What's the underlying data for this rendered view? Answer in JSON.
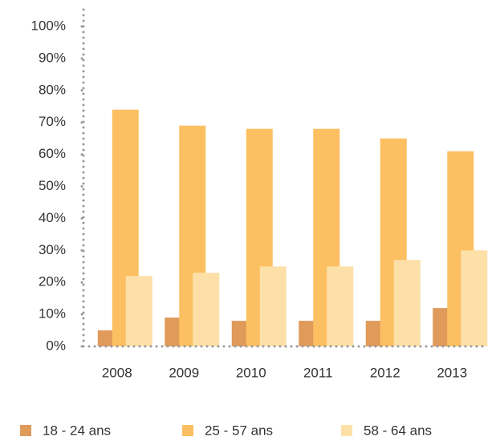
{
  "chart_data": {
    "type": "bar",
    "categories": [
      "2008",
      "2009",
      "2010",
      "2011",
      "2012",
      "2013"
    ],
    "series": [
      {
        "name": "18 - 24 ans",
        "color": "#e09a5a",
        "values": [
          5,
          9,
          8,
          8,
          8,
          12
        ]
      },
      {
        "name": "25 - 57 ans",
        "color": "#fcc062",
        "values": [
          74,
          69,
          68,
          68,
          65,
          61
        ]
      },
      {
        "name": "58 - 64 ans",
        "color": "#fde0a8",
        "values": [
          22,
          23,
          25,
          25,
          27,
          30
        ]
      }
    ],
    "ylim": [
      0,
      100
    ],
    "yticks": [
      {
        "value": 0,
        "label": "0%"
      },
      {
        "value": 10,
        "label": "10%"
      },
      {
        "value": 20,
        "label": "20%"
      },
      {
        "value": 30,
        "label": "30%"
      },
      {
        "value": 40,
        "label": "40%"
      },
      {
        "value": 50,
        "label": "50%"
      },
      {
        "value": 60,
        "label": "60%"
      },
      {
        "value": 70,
        "label": "70%"
      },
      {
        "value": 80,
        "label": "80%"
      },
      {
        "value": 90,
        "label": "90%"
      },
      {
        "value": 100,
        "label": "100%"
      }
    ],
    "grid": false,
    "legend": "bottom"
  }
}
